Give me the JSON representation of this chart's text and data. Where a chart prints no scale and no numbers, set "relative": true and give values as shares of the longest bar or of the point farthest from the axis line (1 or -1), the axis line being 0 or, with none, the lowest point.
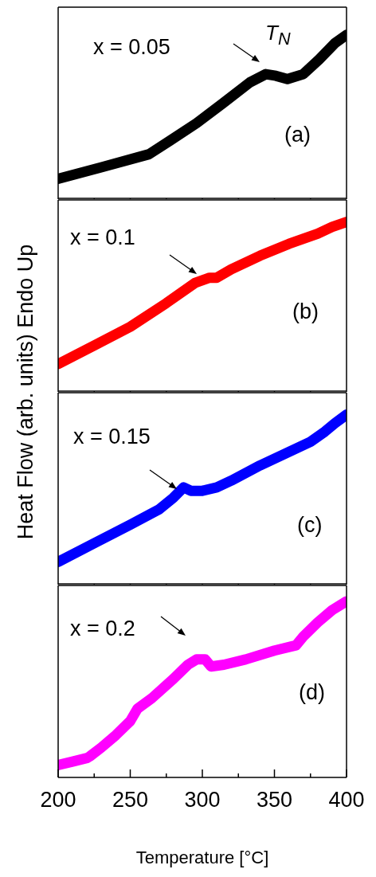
{
  "chart_data": [
    {
      "type": "line",
      "relative": true,
      "ylabel": "Heat Flow (arb. units) Endo Up",
      "xlim": [
        200,
        400
      ],
      "xticks": [
        {
          "value": 200,
          "label": null
        },
        {
          "value": 225,
          "label": null
        },
        {
          "value": 250,
          "label": null
        },
        {
          "value": 275,
          "label": null
        },
        {
          "value": 300,
          "label": null
        },
        {
          "value": 325,
          "label": null
        },
        {
          "value": 350,
          "label": null
        },
        {
          "value": 375,
          "label": null
        },
        {
          "value": 400,
          "label": null
        }
      ],
      "tick_labels": false,
      "line_style": "solid",
      "annotations": [
        "x = 0.05",
        "(a)",
        "T$_{N}$"
      ],
      "x": [
        200,
        230,
        263,
        277,
        296,
        314,
        333,
        344,
        351,
        359,
        370,
        381,
        392,
        400
      ],
      "series": [
        {
          "color": "#000000",
          "values": [
            0.12,
            0.19,
            0.27,
            0.35,
            0.46,
            0.58,
            0.71,
            0.76,
            0.75,
            0.73,
            0.76,
            0.85,
            0.95,
            1.0
          ]
        }
      ]
    },
    {
      "type": "line",
      "relative": true,
      "xlim": [
        200,
        400
      ],
      "xticks": [
        {
          "value": 200,
          "label": null
        },
        {
          "value": 225,
          "label": null
        },
        {
          "value": 250,
          "label": null
        },
        {
          "value": 275,
          "label": null
        },
        {
          "value": 300,
          "label": null
        },
        {
          "value": 325,
          "label": null
        },
        {
          "value": 350,
          "label": null
        },
        {
          "value": 375,
          "label": null
        },
        {
          "value": 400,
          "label": null
        }
      ],
      "tick_labels": false,
      "line_style": "solid",
      "annotations": [
        "x = 0.1",
        "(b)"
      ],
      "x": [
        200,
        225,
        250,
        275,
        295,
        305,
        310,
        320,
        340,
        360,
        380,
        390,
        400
      ],
      "series": [
        {
          "color": "#ff0000",
          "values": [
            0.16,
            0.27,
            0.38,
            0.52,
            0.64,
            0.67,
            0.67,
            0.72,
            0.8,
            0.87,
            0.93,
            0.97,
            1.0
          ]
        }
      ]
    },
    {
      "type": "line",
      "relative": true,
      "xlim": [
        200,
        400
      ],
      "xticks": [
        {
          "value": 200,
          "label": null
        },
        {
          "value": 225,
          "label": null
        },
        {
          "value": 250,
          "label": null
        },
        {
          "value": 275,
          "label": null
        },
        {
          "value": 300,
          "label": null
        },
        {
          "value": 325,
          "label": null
        },
        {
          "value": 350,
          "label": null
        },
        {
          "value": 375,
          "label": null
        },
        {
          "value": 400,
          "label": null
        }
      ],
      "tick_labels": false,
      "line_style": "solid",
      "annotations": [
        "x = 0.15",
        "(c)"
      ],
      "x": [
        200,
        225,
        250,
        270,
        280,
        287,
        292,
        300,
        310,
        320,
        340,
        360,
        375,
        385,
        392,
        400
      ],
      "series": [
        {
          "color": "#0000ff",
          "values": [
            0.13,
            0.24,
            0.35,
            0.44,
            0.51,
            0.57,
            0.55,
            0.55,
            0.57,
            0.61,
            0.7,
            0.78,
            0.84,
            0.9,
            0.95,
            1.0
          ]
        }
      ]
    },
    {
      "type": "line",
      "relative": true,
      "xlabel": "Temperature [°C]",
      "xlim": [
        200,
        400
      ],
      "xticks": [
        200,
        {
          "value": 225,
          "label": null
        },
        250,
        {
          "value": 275,
          "label": null
        },
        300,
        {
          "value": 325,
          "label": null
        },
        350,
        {
          "value": 375,
          "label": null
        },
        400
      ],
      "tick_labels": "x",
      "line_style": "solid",
      "annotations": [
        "x = 0.2",
        "(d)"
      ],
      "x": [
        200,
        210,
        220,
        222,
        230,
        240,
        250,
        255,
        265,
        280,
        290,
        296,
        302,
        306,
        315,
        330,
        350,
        365,
        370,
        380,
        390,
        400
      ],
      "series": [
        {
          "color": "#ff00ff",
          "values": [
            0.07,
            0.09,
            0.11,
            0.12,
            0.17,
            0.24,
            0.32,
            0.39,
            0.45,
            0.56,
            0.64,
            0.67,
            0.67,
            0.63,
            0.64,
            0.67,
            0.72,
            0.75,
            0.8,
            0.88,
            0.95,
            1.0
          ]
        }
      ]
    }
  ]
}
